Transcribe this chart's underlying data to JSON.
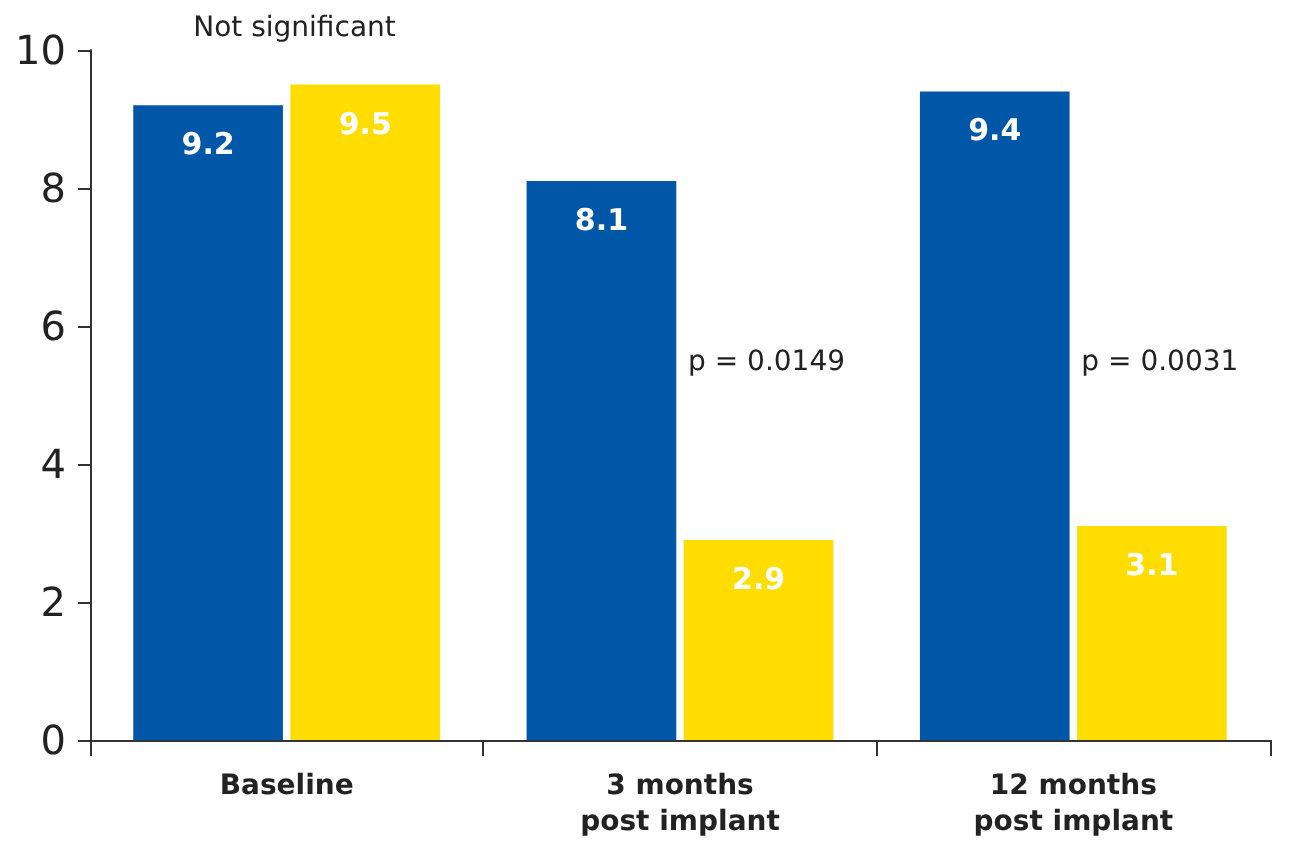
{
  "chart_data": {
    "type": "bar",
    "categories": [
      "Baseline",
      "3 months\npost implant",
      "12 months\npost implant"
    ],
    "series": [
      {
        "color": "#0057a8",
        "values": [
          9.2,
          8.1,
          9.4
        ]
      },
      {
        "color": "#ffdd00",
        "values": [
          9.5,
          2.9,
          3.1
        ]
      }
    ],
    "ylim": [
      0,
      10
    ],
    "yticks": [
      0,
      2,
      4,
      6,
      8,
      10
    ],
    "grid": false,
    "data_labels": true,
    "annotations": [
      "Not significant",
      "p = 0.0149",
      "p = 0.0031"
    ]
  }
}
